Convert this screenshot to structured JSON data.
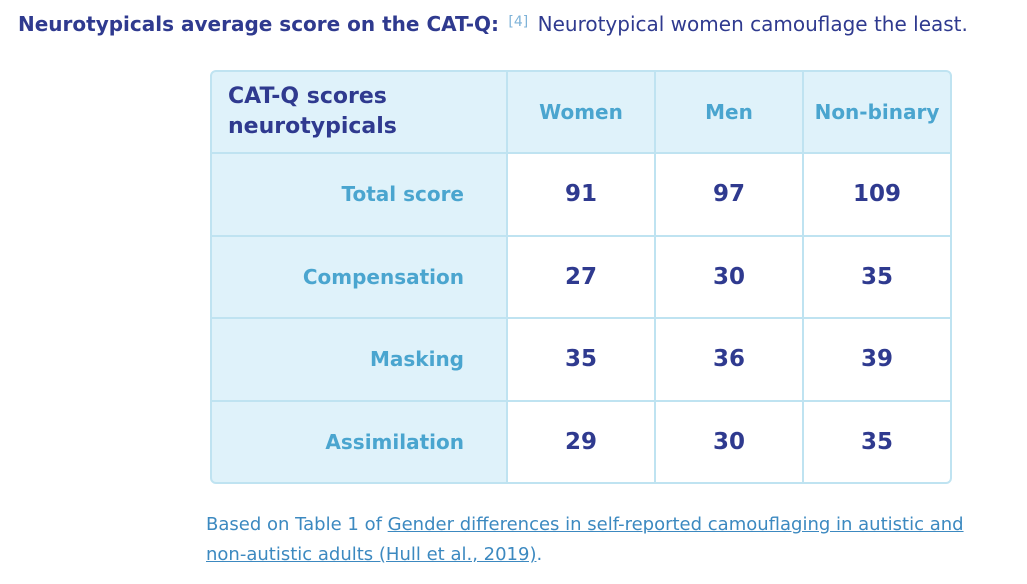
{
  "heading": {
    "lead": "Neurotypicals average score on the CAT-Q:",
    "ref": "[4]",
    "tail": "Neurotypical women camouflage the least."
  },
  "table": {
    "corner": "CAT-Q scores neurotypicals",
    "columns": [
      "Women",
      "Men",
      "Non-binary"
    ],
    "rows": [
      {
        "label": "Total score",
        "values": [
          "91",
          "97",
          "109"
        ]
      },
      {
        "label": "Compensation",
        "values": [
          "27",
          "30",
          "35"
        ]
      },
      {
        "label": "Masking",
        "values": [
          "35",
          "36",
          "39"
        ]
      },
      {
        "label": "Assimilation",
        "values": [
          "29",
          "30",
          "35"
        ]
      }
    ]
  },
  "caption": {
    "prefix": "Based on Table 1 of ",
    "link": "Gender differences in self-reported camouflaging in autistic and non-autistic adults (Hull et al., 2019)",
    "suffix": "."
  },
  "colors": {
    "navy": "#2f3a8f",
    "light_blue": "#4aa5cf",
    "cell_bg": "#dff2fa",
    "border": "#bfe3f1"
  }
}
